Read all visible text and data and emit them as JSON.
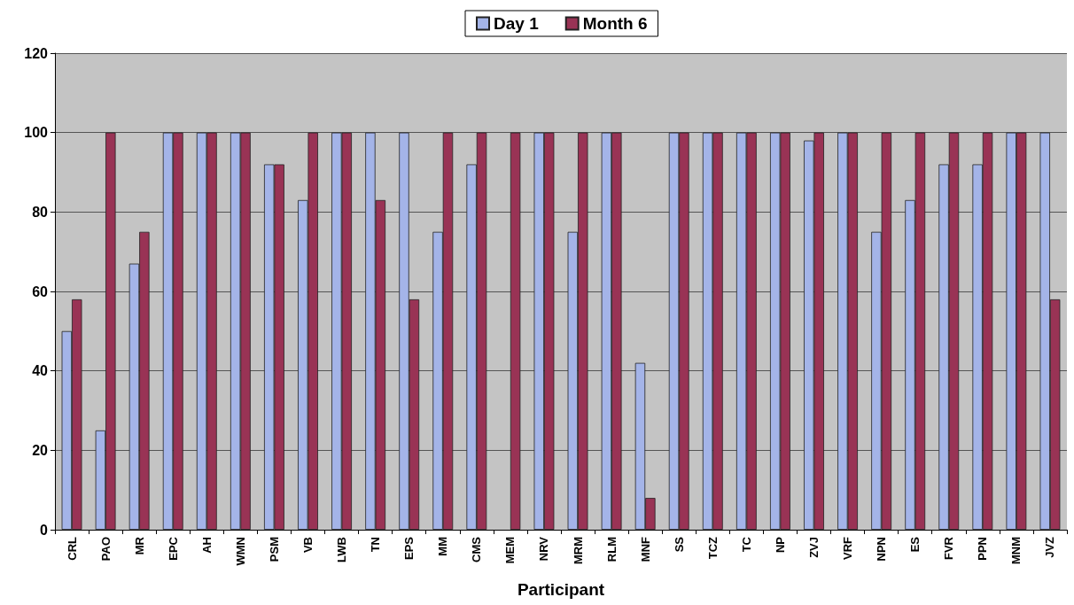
{
  "chart_data": {
    "type": "bar",
    "xlabel": "Participant",
    "categories": [
      "CRL",
      "PAO",
      "MR",
      "EPC",
      "AH",
      "WMN",
      "PSM",
      "VB",
      "LWB",
      "TN",
      "EPS",
      "MM",
      "CMS",
      "MEM",
      "NRV",
      "MRM",
      "RLM",
      "MNF",
      "SS",
      "TCZ",
      "TC",
      "NP",
      "ZVJ",
      "VRF",
      "NPN",
      "ES",
      "FVR",
      "PPN",
      "MNM",
      "JVZ"
    ],
    "series": [
      {
        "name": "Day 1",
        "color": "#a4b4e8",
        "values": [
          50,
          25,
          67,
          100,
          100,
          100,
          92,
          83,
          100,
          100,
          100,
          75,
          92,
          null,
          100,
          75,
          100,
          42,
          100,
          100,
          100,
          100,
          98,
          100,
          75,
          83,
          92,
          92,
          100,
          100
        ]
      },
      {
        "name": "Month 6",
        "color": "#993355",
        "values": [
          58,
          100,
          75,
          100,
          100,
          100,
          92,
          100,
          100,
          83,
          58,
          100,
          100,
          100,
          100,
          100,
          100,
          8,
          100,
          100,
          100,
          100,
          100,
          100,
          100,
          100,
          100,
          100,
          100,
          58
        ]
      }
    ],
    "ylim": [
      0,
      120
    ],
    "yticks": [
      0,
      20,
      40,
      60,
      80,
      100,
      120
    ],
    "grid": "y",
    "legend": "top"
  }
}
